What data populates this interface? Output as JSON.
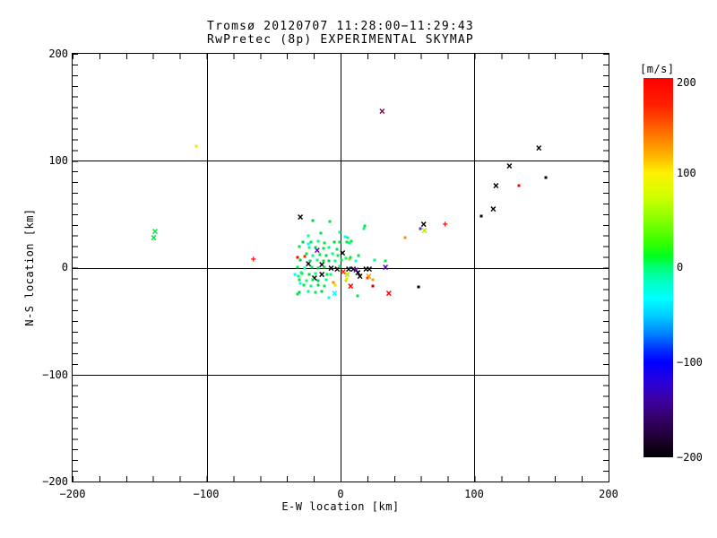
{
  "title": {
    "line1": "Tromsø 20120707 11:28:00−11:29:43",
    "line2": "RwPretec (8p) EXPERIMENTAL SKYMAP"
  },
  "axes": {
    "x": {
      "label": "E-W location [km]",
      "ticks": [
        "−200",
        "−100",
        "0",
        "100",
        "200"
      ]
    },
    "y": {
      "label": "N-S location [km]",
      "ticks": [
        "200",
        "100",
        "0",
        "−100",
        "−200"
      ]
    }
  },
  "colorbar": {
    "unit_label": "[m/s]",
    "ticks": [
      "200",
      "100",
      "0",
      "−100",
      "−200"
    ],
    "range": [
      -200,
      200
    ],
    "color_top": "#ff0000",
    "color_100": "#fff000",
    "color_0": "#00ff78",
    "color_neg100": "#0000ff",
    "color_bottom": "#000000"
  },
  "chart_data": {
    "type": "scatter",
    "title": "Tromsø 20120707 11:28:00−11:29:43 / RwPretec (8p) EXPERIMENTAL SKYMAP",
    "xlabel": "E-W location [km]",
    "ylabel": "N-S location [km]",
    "xlim": [
      -200,
      200
    ],
    "ylim": [
      -200,
      200
    ],
    "grid": true,
    "gridlines_at": [
      -100,
      0,
      100
    ],
    "x_minor_tick_km": 20,
    "y_minor_tick_km": 10,
    "colorbar_label": "[m/s]",
    "colorbar_range": [
      -200,
      200
    ],
    "glyphs": {
      "x": "×",
      "p": "+"
    },
    "points": [
      [
        31,
        146,
        "#7a0b5e",
        "x"
      ],
      [
        148,
        112,
        "#000000",
        "x"
      ],
      [
        126,
        95,
        "#000000",
        "x"
      ],
      [
        116,
        77,
        "#000000",
        "x"
      ],
      [
        114,
        55,
        "#000000",
        "x"
      ],
      [
        153,
        84,
        "#000000",
        "d"
      ],
      [
        133,
        77,
        "#ff0000",
        "d"
      ],
      [
        105,
        48,
        "#000000",
        "d"
      ],
      [
        62,
        41,
        "#000000",
        "x"
      ],
      [
        62.5,
        35,
        "#aaee00",
        "x"
      ],
      [
        59.5,
        36.5,
        "#7722cc",
        "d"
      ],
      [
        48,
        28,
        "#ff8800",
        "d"
      ],
      [
        78,
        40,
        "#ff0000",
        "p"
      ],
      [
        -30,
        47,
        "#000000",
        "x"
      ],
      [
        -108,
        114,
        "#ffe600",
        "d"
      ],
      [
        -138.5,
        34,
        "#00e63c",
        "x"
      ],
      [
        -139.5,
        28.5,
        "#00e63c",
        "x"
      ],
      [
        -65,
        7,
        "#ff0000",
        "p"
      ],
      [
        -17.5,
        16,
        "#5f00c8",
        "x"
      ],
      [
        1.5,
        13.5,
        "#000000",
        "x"
      ],
      [
        -24,
        4,
        "#000000",
        "x"
      ],
      [
        -14,
        3,
        "#000000",
        "x"
      ],
      [
        -7,
        0,
        "#000000",
        "x"
      ],
      [
        -2.5,
        -1,
        "#000000",
        "x"
      ],
      [
        6,
        -1.5,
        "#000000",
        "x"
      ],
      [
        9.5,
        -1.5,
        "#000000",
        "x"
      ],
      [
        11.5,
        -2,
        "#6600cc",
        "x"
      ],
      [
        19,
        -1,
        "#000000",
        "x"
      ],
      [
        21.5,
        -1,
        "#000000",
        "x"
      ],
      [
        33.5,
        0.5,
        "#4b00b4",
        "x"
      ],
      [
        13,
        -5,
        "#000000",
        "x"
      ],
      [
        14.5,
        -8,
        "#000000",
        "x"
      ],
      [
        21,
        -8,
        "#ff9900",
        "x"
      ],
      [
        2,
        -3.5,
        "#ff2200",
        "x"
      ],
      [
        5,
        -6.5,
        "#b4e600",
        "x"
      ],
      [
        7.5,
        -17,
        "#ff0000",
        "x"
      ],
      [
        36,
        -23.5,
        "#ff0000",
        "x"
      ],
      [
        -4.5,
        -23.5,
        "#00ffff",
        "x"
      ],
      [
        -19.5,
        -9.5,
        "#000000",
        "x"
      ],
      [
        -14,
        -6.7,
        "#000000",
        "x"
      ],
      [
        58,
        -18,
        "#000000",
        "d"
      ],
      [
        24.3,
        -17,
        "#cc0000",
        "d"
      ],
      [
        -32,
        10,
        "#ff0000",
        "d"
      ],
      [
        -26.5,
        10.5,
        "#ff2200",
        "d"
      ],
      [
        20,
        -9.5,
        "#ff4400",
        "d"
      ],
      [
        24.4,
        -11.5,
        "#ff9900",
        "d"
      ],
      [
        -5.5,
        -14,
        "#ff8800",
        "d"
      ],
      [
        -3.7,
        -16.6,
        "#ffd500",
        "d"
      ],
      [
        4.6,
        -10,
        "#ffe600",
        "d"
      ],
      [
        3.8,
        -12.4,
        "#cce600",
        "d"
      ],
      [
        6.4,
        8,
        "#bbcc00",
        "d"
      ],
      [
        -24,
        30,
        "#00ff80",
        "d"
      ],
      [
        -14.5,
        32,
        "#00e646",
        "d"
      ],
      [
        -0.7,
        33,
        "#00ff80",
        "d"
      ],
      [
        -28,
        24,
        "#00d24b",
        "d"
      ],
      [
        -22,
        23.5,
        "#00e646",
        "d"
      ],
      [
        -16.5,
        24.5,
        "#00ff80",
        "d"
      ],
      [
        -12,
        22.7,
        "#00e646",
        "d"
      ],
      [
        -5,
        24,
        "#00d24b",
        "d"
      ],
      [
        -1,
        23.5,
        "#00e646",
        "d"
      ],
      [
        5,
        24,
        "#00e646",
        "d"
      ],
      [
        7,
        22.7,
        "#00ff80",
        "d"
      ],
      [
        -31,
        20,
        "#00e646",
        "d"
      ],
      [
        -23.5,
        18.5,
        "#00ff80",
        "d"
      ],
      [
        -18.5,
        19,
        "#00d24b",
        "d"
      ],
      [
        -13,
        18,
        "#00e646",
        "d"
      ],
      [
        -8.5,
        18.5,
        "#00ff80",
        "d"
      ],
      [
        -3,
        17,
        "#00e646",
        "d"
      ],
      [
        -24.2,
        21.9,
        "#00ffff",
        "d"
      ],
      [
        -25.5,
        13,
        "#00e646",
        "d"
      ],
      [
        -21,
        11.5,
        "#00ff80",
        "d"
      ],
      [
        -15.3,
        12.4,
        "#00e646",
        "d"
      ],
      [
        -10.8,
        11.5,
        "#00d24b",
        "d"
      ],
      [
        -6.3,
        13,
        "#00ff80",
        "d"
      ],
      [
        -1.8,
        11.5,
        "#00e646",
        "d"
      ],
      [
        -29.8,
        7.3,
        "#00d24b",
        "d"
      ],
      [
        -23,
        6,
        "#00e646",
        "d"
      ],
      [
        -17.5,
        7.3,
        "#00ff80",
        "d"
      ],
      [
        -13,
        6,
        "#00e646",
        "d"
      ],
      [
        -8.5,
        6.7,
        "#00d24b",
        "d"
      ],
      [
        -4,
        6,
        "#00ff80",
        "d"
      ],
      [
        -32,
        0.3,
        "#00e646",
        "d"
      ],
      [
        -26.5,
        -0.6,
        "#00ff80",
        "d"
      ],
      [
        -21.3,
        0.3,
        "#00e646",
        "d"
      ],
      [
        -16.4,
        -0.6,
        "#00d24b",
        "d"
      ],
      [
        -12,
        0.3,
        "#00e646",
        "d"
      ],
      [
        -0.7,
        1.1,
        "#00ff80",
        "d"
      ],
      [
        -28.7,
        -5.3,
        "#00e646",
        "d"
      ],
      [
        -23.5,
        -6,
        "#00d24b",
        "d"
      ],
      [
        -18.6,
        -5.3,
        "#00ff80",
        "d"
      ],
      [
        -10,
        -6,
        "#00e646",
        "d"
      ],
      [
        -34.3,
        -6.7,
        "#00ffff",
        "d"
      ],
      [
        -31,
        -11,
        "#00e646",
        "d"
      ],
      [
        -25.4,
        -11.8,
        "#00ff80",
        "d"
      ],
      [
        -21,
        -11,
        "#00e646",
        "d"
      ],
      [
        -16.4,
        -11.8,
        "#00d24b",
        "d"
      ],
      [
        -10.8,
        -11,
        "#00ff80",
        "d"
      ],
      [
        -27.6,
        -16.6,
        "#00e646",
        "d"
      ],
      [
        -22,
        -17.4,
        "#00ff80",
        "d"
      ],
      [
        -16.8,
        -16.6,
        "#00d24b",
        "d"
      ],
      [
        -12,
        -17.4,
        "#00e646",
        "d"
      ],
      [
        -24.2,
        -22,
        "#00ff80",
        "d"
      ],
      [
        -18.6,
        -23,
        "#00e646",
        "d"
      ],
      [
        -14,
        -22,
        "#00d24b",
        "d"
      ],
      [
        -32,
        -25,
        "#00e646",
        "d"
      ],
      [
        -7.4,
        -6.7,
        "#00ff80",
        "d"
      ],
      [
        0.5,
        7.3,
        "#00e646",
        "d"
      ],
      [
        3.8,
        8.7,
        "#00ff80",
        "d"
      ],
      [
        7.2,
        10,
        "#00e646",
        "d"
      ],
      [
        -20.9,
        43.7,
        "#00d24b",
        "d"
      ],
      [
        -8,
        43,
        "#00e646",
        "d"
      ],
      [
        17.7,
        36.7,
        "#00ff80",
        "d"
      ],
      [
        18.3,
        38.8,
        "#00e646",
        "d"
      ],
      [
        7.8,
        25,
        "#00e646",
        "d"
      ],
      [
        5.2,
        28.5,
        "#00ff80",
        "d"
      ],
      [
        3.3,
        29.3,
        "#00ffff",
        "d"
      ],
      [
        13.4,
        11.7,
        "#00e646",
        "d"
      ],
      [
        25.6,
        7.5,
        "#00ff80",
        "d"
      ],
      [
        33.4,
        6.1,
        "#00e646",
        "d"
      ],
      [
        -31.6,
        -8.2,
        "#00ff80",
        "d"
      ],
      [
        -30.3,
        -15,
        "#00ffff",
        "d"
      ],
      [
        -31,
        -22.7,
        "#00d24b",
        "d"
      ],
      [
        -29.4,
        -4.8,
        "#00ff80",
        "d"
      ],
      [
        11.6,
        6,
        "#00ffff",
        "d"
      ],
      [
        12.8,
        -26.3,
        "#00e646",
        "d"
      ],
      [
        -9,
        -28,
        "#00ffff",
        "d"
      ]
    ]
  }
}
